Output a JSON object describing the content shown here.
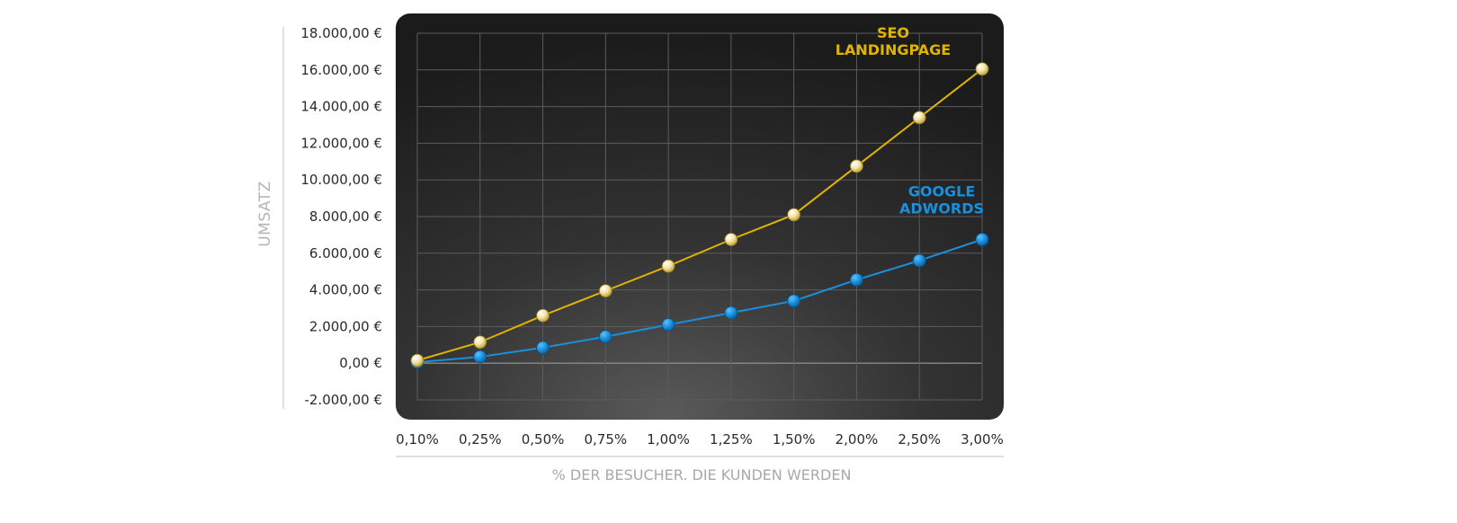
{
  "chart_data": {
    "type": "line",
    "title": "",
    "xlabel": "% DER BESUCHER. DIE KUNDEN WERDEN",
    "ylabel": "UMSATZ",
    "categories": [
      "0,10%",
      "0,25%",
      "0,50%",
      "0,75%",
      "1,00%",
      "1,25%",
      "1,50%",
      "2,00%",
      "2,50%",
      "3,00%"
    ],
    "y_tick_labels": [
      "18.000,00 €",
      "16.000,00 €",
      "14.000,00 €",
      "12.000,00 €",
      "10.000,00 €",
      "8.000,00 €",
      "6.000,00 €",
      "4.000,00 €",
      "2.000,00 €",
      "0,00 €",
      "-2.000,00 €"
    ],
    "y_ticks": [
      18000,
      16000,
      14000,
      12000,
      10000,
      8000,
      6000,
      4000,
      2000,
      0,
      -2000
    ],
    "ylim": [
      -2000,
      18000
    ],
    "grid": true,
    "series": [
      {
        "name": "SEO LANDINGPAGE",
        "label_lines": [
          "SEO",
          "LANDINGPAGE"
        ],
        "color": "#e0b400",
        "marker_color": "#f3e3a0",
        "values": [
          150,
          1150,
          2600,
          3950,
          5300,
          6750,
          8100,
          10750,
          13400,
          16050
        ]
      },
      {
        "name": "GOOGLE ADWORDS",
        "label_lines": [
          "GOOGLE",
          "ADWORDS"
        ],
        "color": "#1a8fdc",
        "marker_color": "#1c92e0",
        "values": [
          50,
          350,
          850,
          1450,
          2100,
          2750,
          3400,
          4550,
          5600,
          6750
        ]
      }
    ]
  }
}
